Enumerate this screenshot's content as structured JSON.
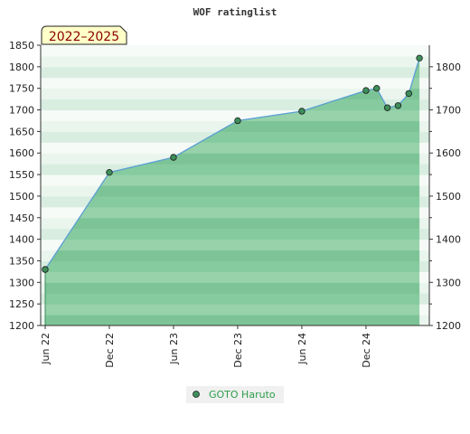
{
  "chart_data": {
    "type": "area",
    "title": "WOF ratinglist",
    "period_badge": "2022–2025",
    "xlabel": "",
    "ylabel": "",
    "ylim": [
      1200,
      1850
    ],
    "left_ticks": [
      1200,
      1250,
      1300,
      1350,
      1400,
      1450,
      1500,
      1550,
      1600,
      1650,
      1700,
      1750,
      1800,
      1850
    ],
    "right_ticks": [
      1200,
      1300,
      1400,
      1500,
      1600,
      1700,
      1800
    ],
    "x_ticks": [
      "Jun 22",
      "Dec 22",
      "Jun 23",
      "Dec 23",
      "Jun 24",
      "Dec 24"
    ],
    "x_tick_positions": [
      0,
      6,
      12,
      18,
      24,
      30
    ],
    "xlim": [
      0,
      35.5
    ],
    "grid": false,
    "legend_position": "bottom-center",
    "series": [
      {
        "name": "GOTO Haruto",
        "color": "#2a9d4a",
        "x": [
          0,
          6,
          12,
          18,
          24,
          30,
          31,
          32,
          33,
          34,
          35
        ],
        "y": [
          1330,
          1555,
          1590,
          1675,
          1697,
          1745,
          1750,
          1705,
          1710,
          1738,
          1820
        ]
      }
    ]
  },
  "legend": {
    "marker_color": "#3e8e5a"
  }
}
